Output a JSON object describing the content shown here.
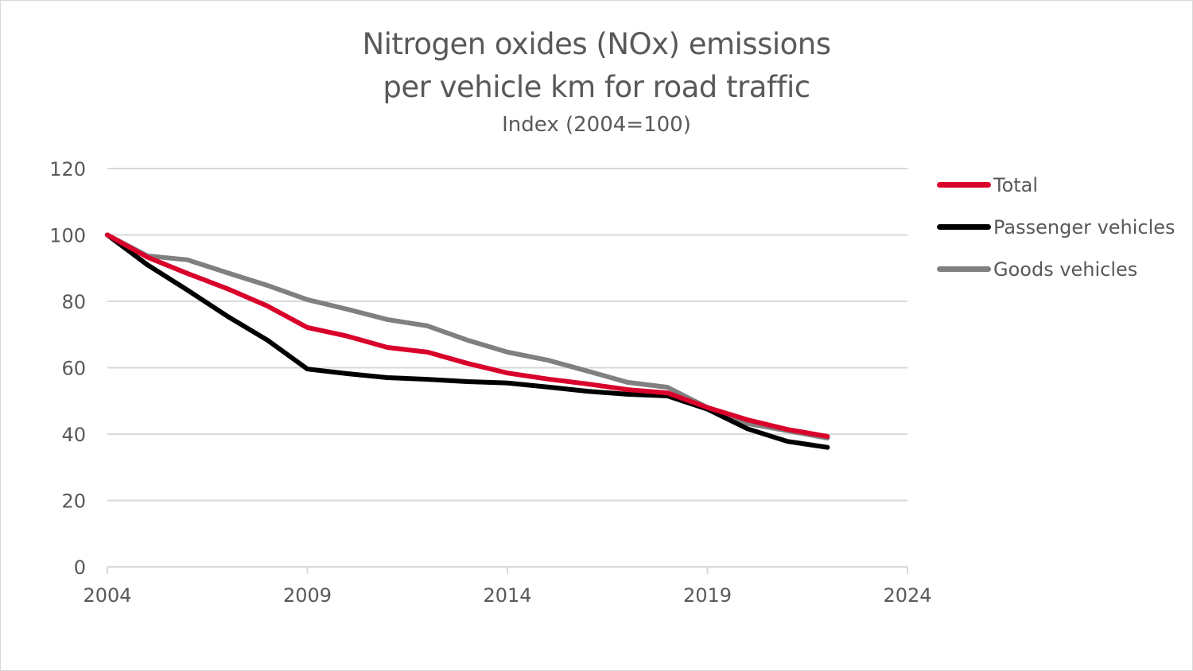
{
  "chart_data": {
    "type": "line",
    "title": "Nitrogen oxides (NOx) emissions",
    "title_line2": "per vehicle km for road traffic",
    "subtitle": "Index (2004=100)",
    "xlabel": "",
    "ylabel": "",
    "x": [
      2004,
      2005,
      2006,
      2007,
      2008,
      2009,
      2010,
      2011,
      2012,
      2013,
      2014,
      2015,
      2016,
      2017,
      2018,
      2019,
      2020,
      2021,
      2022
    ],
    "xlim": [
      2004,
      2024
    ],
    "ylim": [
      0,
      120
    ],
    "xticks": [
      "2004",
      "2009",
      "2014",
      "2019",
      "2024"
    ],
    "yticks": [
      "0",
      "20",
      "40",
      "60",
      "80",
      "100",
      "120"
    ],
    "grid": true,
    "legend_position": "right",
    "series": [
      {
        "name": "Total",
        "color": "#d9002b",
        "values": [
          100,
          93.3,
          88.4,
          83.8,
          78.6,
          72.1,
          69.5,
          66.1,
          64.7,
          61.3,
          58.4,
          56.6,
          55.1,
          53.4,
          52.4,
          48.0,
          44.3,
          41.4,
          39.3
        ]
      },
      {
        "name": "Passenger vehicles",
        "color": "#000000",
        "values": [
          100,
          91.0,
          83.4,
          75.5,
          68.3,
          59.6,
          58.2,
          57.0,
          56.5,
          55.8,
          55.4,
          54.2,
          52.9,
          52.0,
          51.5,
          47.5,
          41.6,
          37.8,
          36.0
        ]
      },
      {
        "name": "Goods vehicles",
        "color": "#808080",
        "values": [
          100,
          93.7,
          92.5,
          88.6,
          84.8,
          80.5,
          77.6,
          74.5,
          72.6,
          68.3,
          64.7,
          62.3,
          59.0,
          55.6,
          54.1,
          48.0,
          43.2,
          41.0,
          38.8
        ]
      }
    ]
  },
  "colors": {
    "gridline": "#d9d9d9",
    "text": "#595959"
  }
}
